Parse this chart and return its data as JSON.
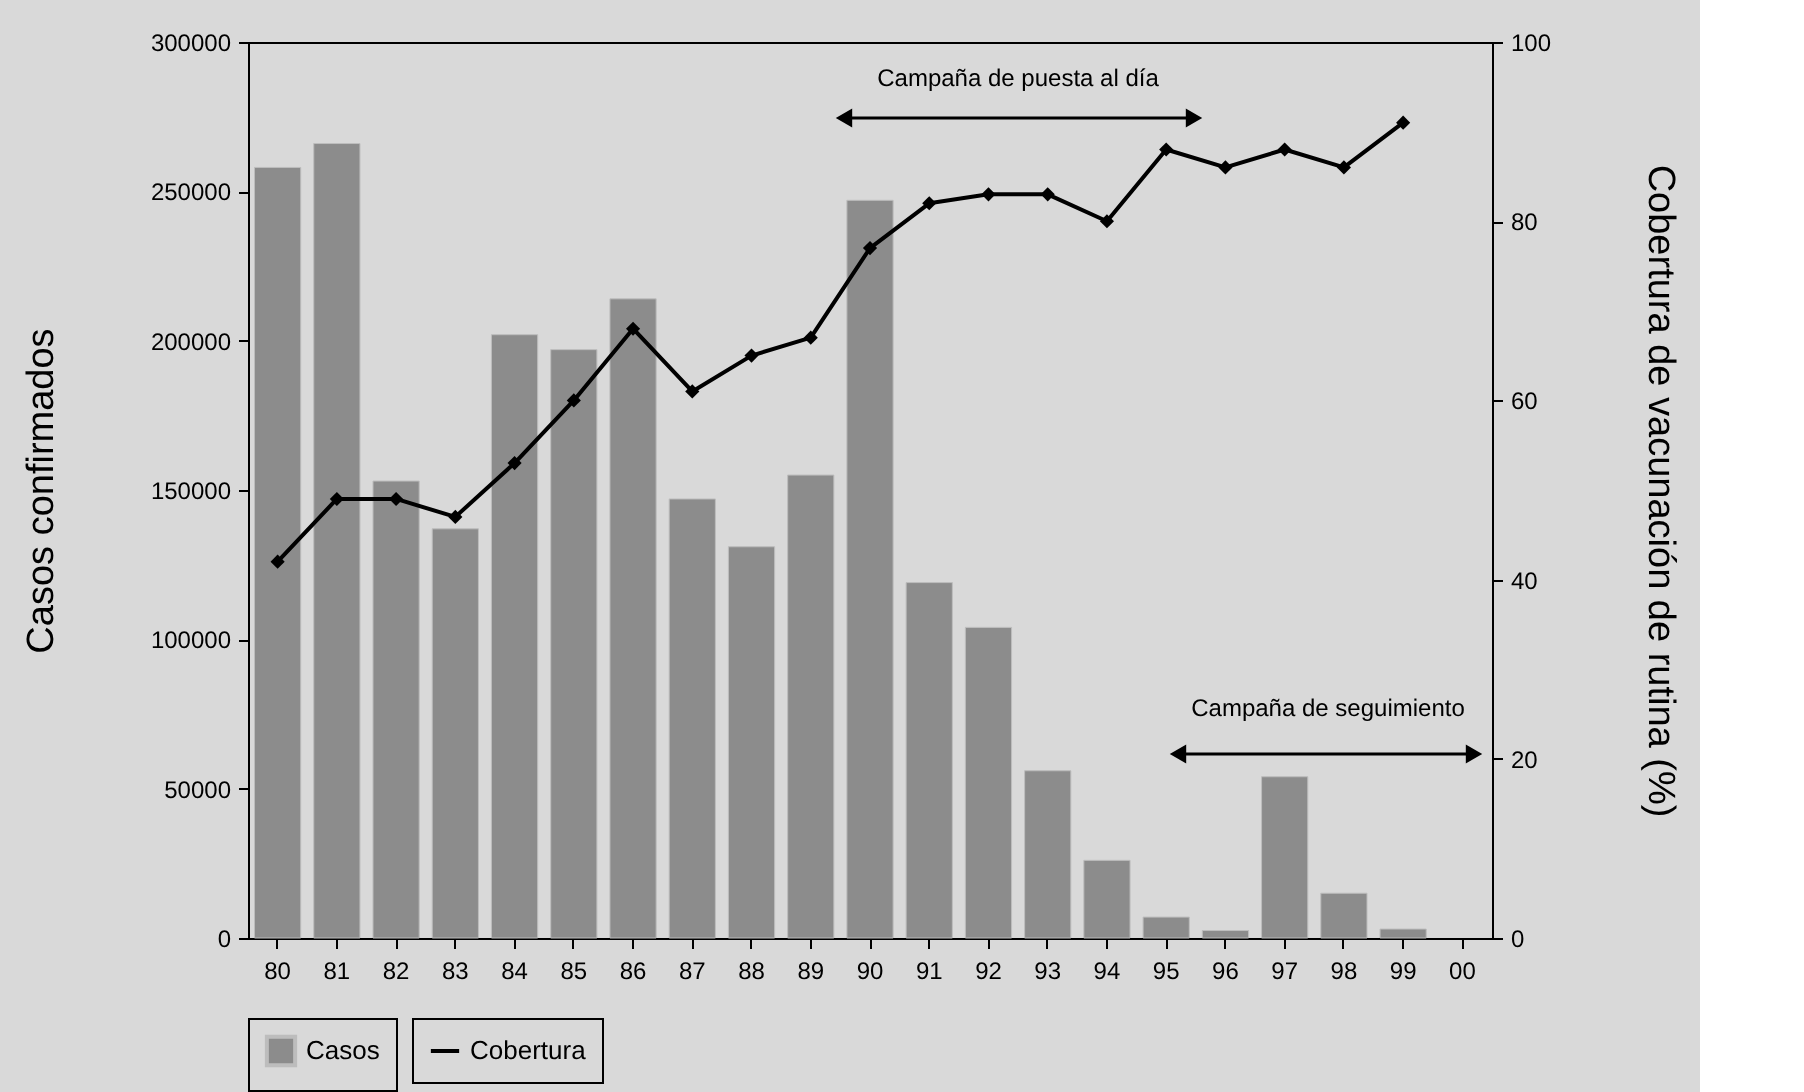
{
  "chart_data": {
    "type": "bar",
    "categories": [
      "80",
      "81",
      "82",
      "83",
      "84",
      "85",
      "86",
      "87",
      "88",
      "89",
      "90",
      "91",
      "92",
      "93",
      "94",
      "95",
      "96",
      "97",
      "98",
      "99",
      "00"
    ],
    "series": [
      {
        "name": "Casos",
        "color": "#8c8c8c",
        "values": [
          258000,
          266000,
          153000,
          137000,
          202000,
          197000,
          214000,
          147000,
          131000,
          155000,
          247000,
          119000,
          104000,
          56000,
          26000,
          7000,
          2500,
          54000,
          15000,
          3000,
          null
        ]
      },
      {
        "name": "Cobertura",
        "type": "line",
        "axis": "y2",
        "color": "#000000",
        "marker": "diamond",
        "values": [
          42,
          49,
          49,
          47,
          53,
          60,
          68,
          61,
          65,
          67,
          77,
          82,
          83,
          83,
          80,
          88,
          86,
          88,
          86,
          91,
          null
        ]
      }
    ],
    "ylabel": "Casos confirmados",
    "y2label": "Cobertura de vacunación de rutina (%)",
    "ylim": [
      0,
      300000
    ],
    "yticks": [
      0,
      50000,
      100000,
      150000,
      200000,
      250000,
      300000
    ],
    "y2lim": [
      0,
      100
    ],
    "y2ticks": [
      0,
      20,
      40,
      60,
      80,
      100
    ],
    "annotations": [
      "Campaña de puesta al día",
      "Campaña de seguimiento"
    ],
    "grid": false,
    "legend": "bottom"
  }
}
